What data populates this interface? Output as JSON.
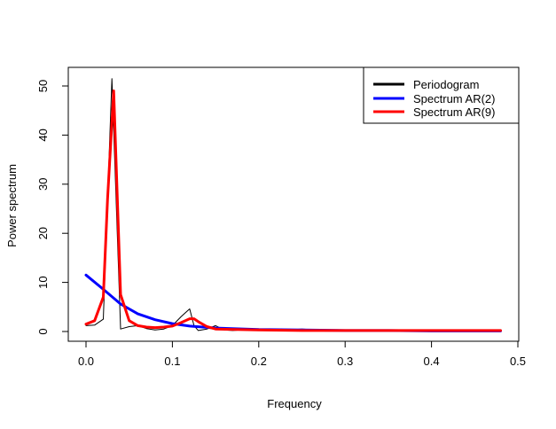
{
  "chart_data": {
    "type": "line",
    "title": "",
    "xlabel": "Frequency",
    "ylabel": "Power spectrum",
    "xlim": [
      0,
      0.5
    ],
    "ylim": [
      0,
      52
    ],
    "xticks": [
      0,
      0.1,
      0.2,
      0.3,
      0.4,
      0.5
    ],
    "xtick_labels": [
      "0.0",
      "0.1",
      "0.2",
      "0.3",
      "0.4",
      "0.5"
    ],
    "yticks": [
      0,
      10,
      20,
      30,
      40,
      50
    ],
    "ytick_labels": [
      "0",
      "10",
      "20",
      "30",
      "40",
      "50"
    ],
    "grid": false,
    "legend_position": "top-right",
    "series": [
      {
        "name": "Periodogram",
        "color": "#000000",
        "width": 1,
        "x": [
          0.0,
          0.01,
          0.02,
          0.03,
          0.04,
          0.05,
          0.06,
          0.07,
          0.08,
          0.09,
          0.1,
          0.11,
          0.115,
          0.12,
          0.125,
          0.13,
          0.14,
          0.15,
          0.16,
          0.17,
          0.18,
          0.2,
          0.22,
          0.25,
          0.28,
          0.3,
          0.35,
          0.4,
          0.45,
          0.48
        ],
        "y": [
          1.2,
          1.3,
          2.5,
          51.5,
          0.5,
          1.0,
          1.2,
          0.6,
          0.3,
          0.5,
          1.2,
          3.0,
          3.8,
          4.6,
          1.2,
          0.2,
          0.5,
          1.2,
          0.3,
          0.2,
          0.3,
          0.2,
          0.2,
          0.5,
          0.2,
          0.2,
          0.1,
          0.2,
          0.1,
          0.1
        ]
      },
      {
        "name": "Spectrum AR(2)",
        "color": "#0000ff",
        "width": 3,
        "x": [
          0.0,
          0.02,
          0.04,
          0.06,
          0.08,
          0.1,
          0.12,
          0.15,
          0.2,
          0.25,
          0.3,
          0.35,
          0.4,
          0.45,
          0.48
        ],
        "y": [
          11.5,
          8.6,
          5.6,
          3.6,
          2.4,
          1.6,
          1.1,
          0.7,
          0.4,
          0.3,
          0.2,
          0.2,
          0.1,
          0.1,
          0.1
        ]
      },
      {
        "name": "Spectrum AR(9)",
        "color": "#ff0000",
        "width": 3,
        "x": [
          0.0,
          0.01,
          0.02,
          0.025,
          0.032,
          0.04,
          0.05,
          0.06,
          0.07,
          0.08,
          0.09,
          0.1,
          0.11,
          0.12,
          0.125,
          0.13,
          0.14,
          0.15,
          0.2,
          0.25,
          0.3,
          0.35,
          0.4,
          0.45,
          0.48
        ],
        "y": [
          1.5,
          2.2,
          7.0,
          27.0,
          49.0,
          7.5,
          2.2,
          1.2,
          0.9,
          0.8,
          0.9,
          1.1,
          1.8,
          2.6,
          2.6,
          2.0,
          1.0,
          0.5,
          0.3,
          0.2,
          0.2,
          0.2,
          0.2,
          0.2,
          0.2
        ]
      }
    ]
  }
}
